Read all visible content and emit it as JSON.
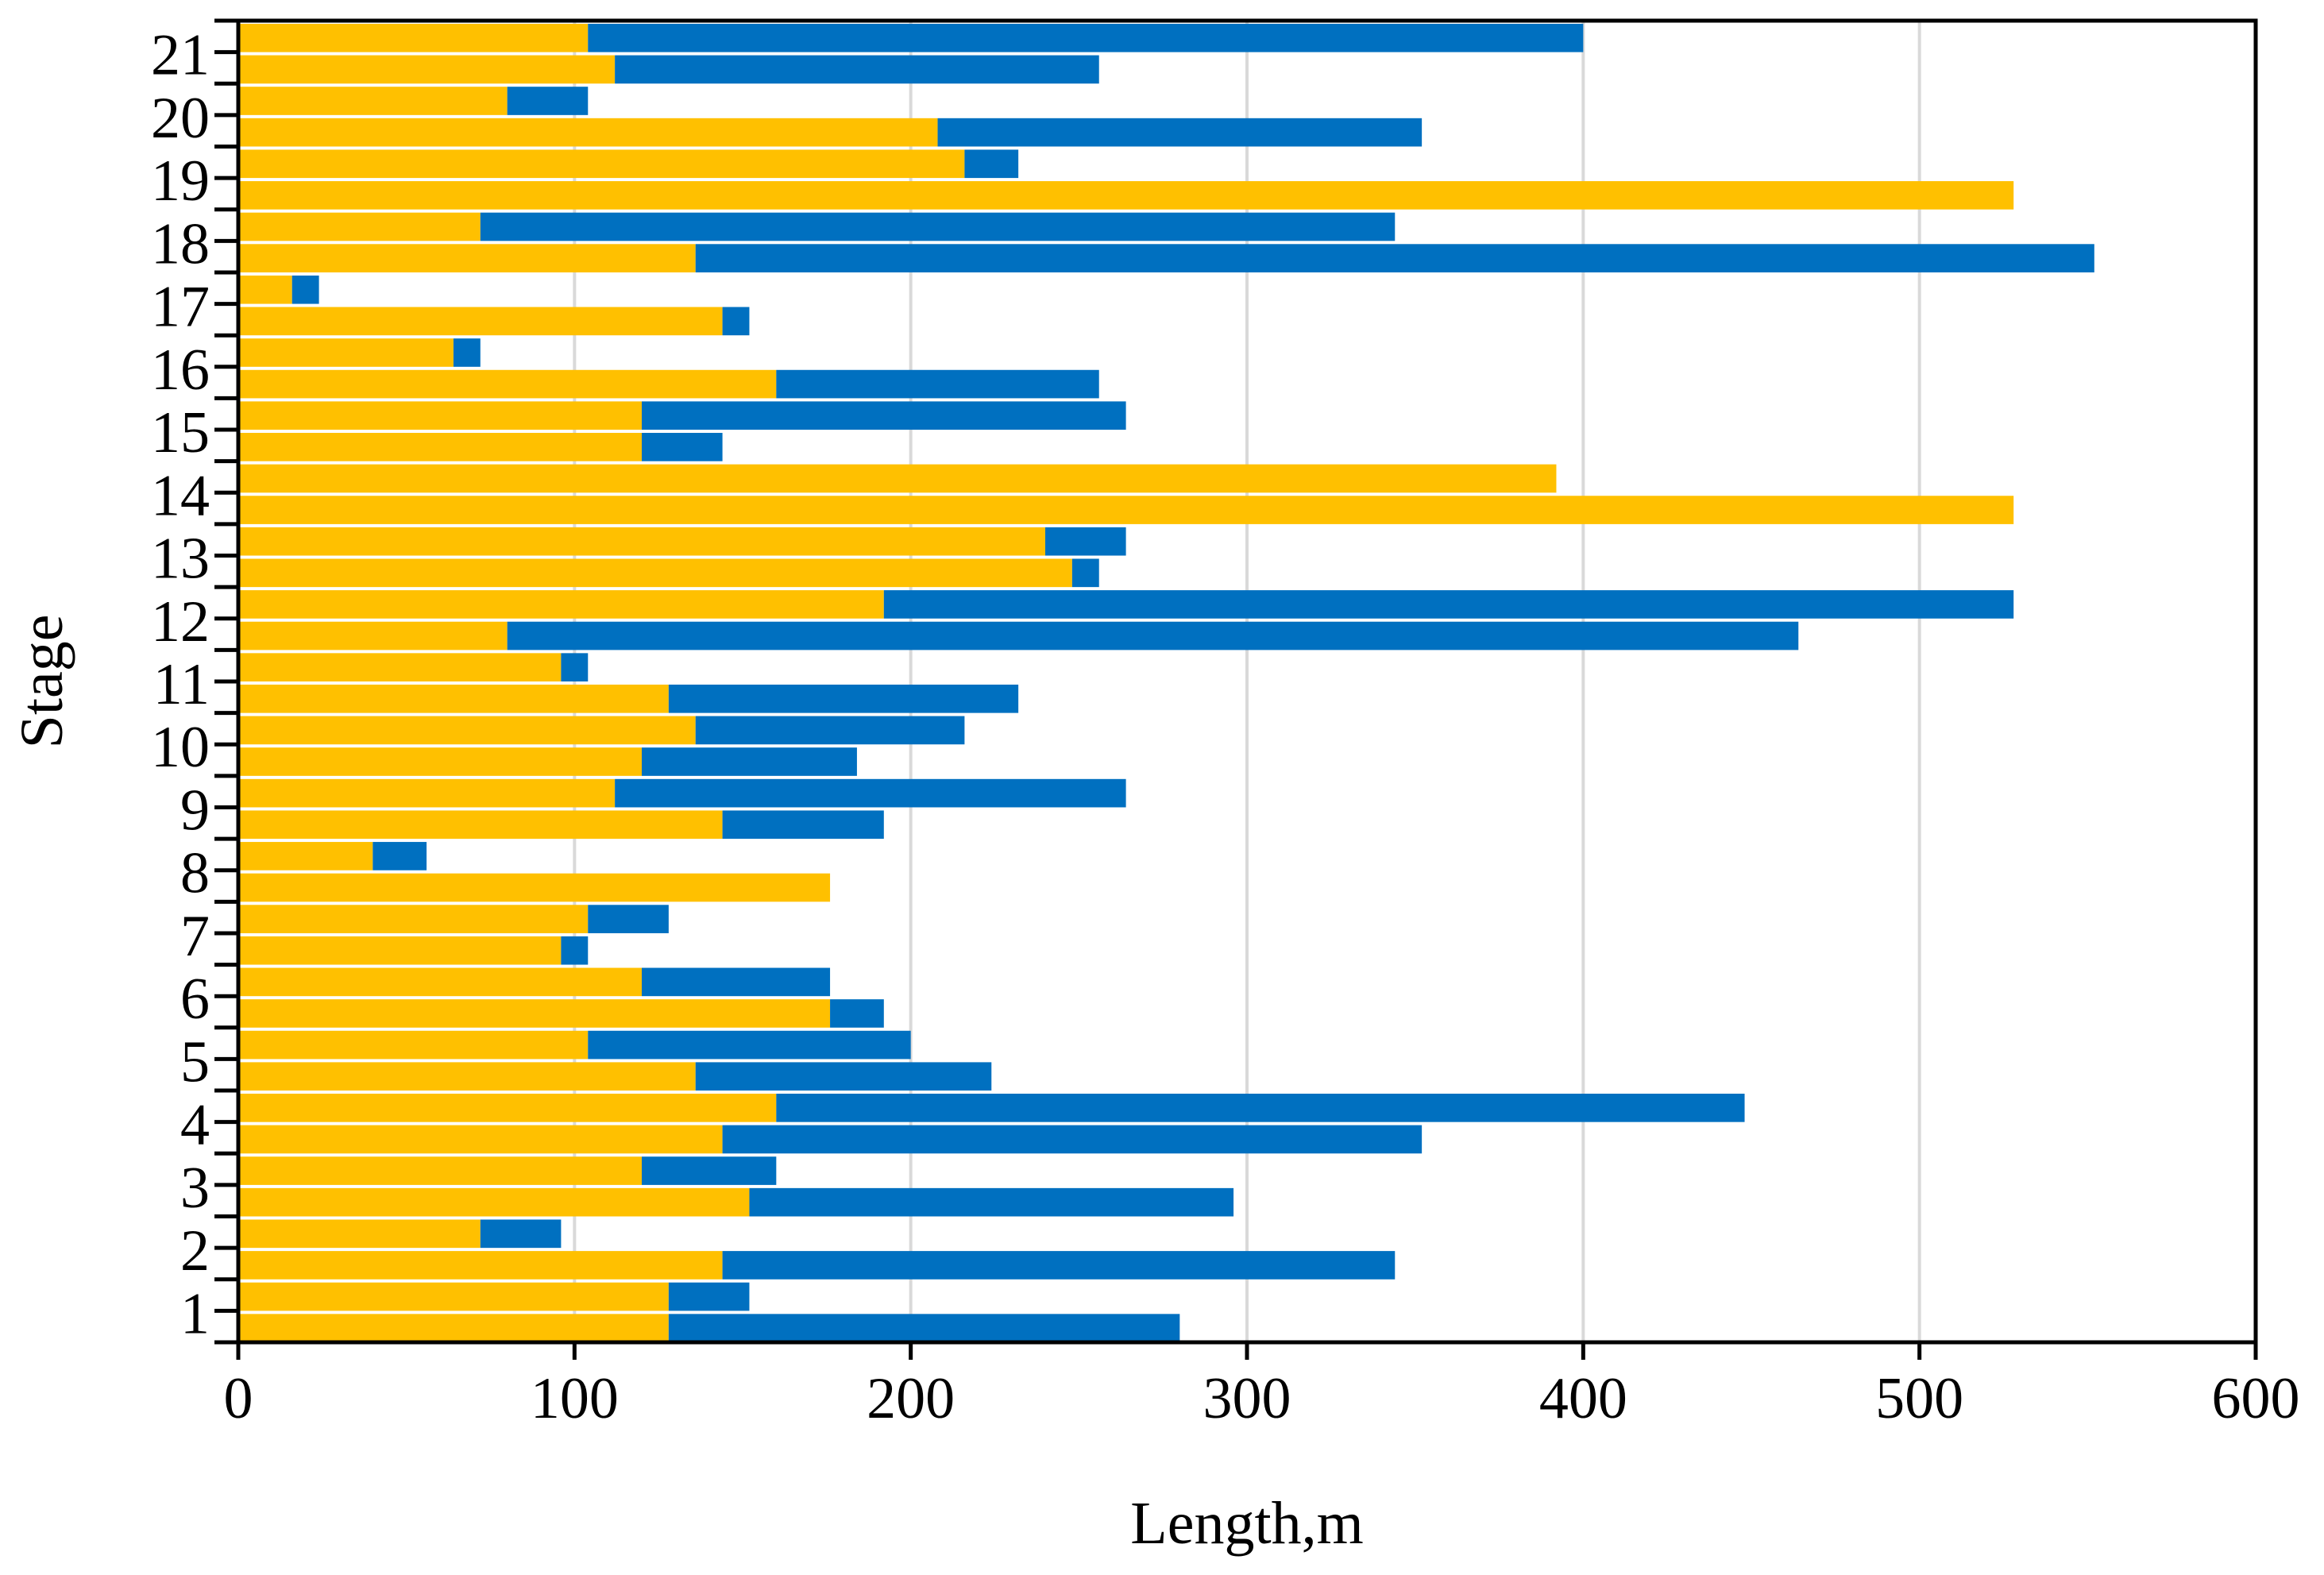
{
  "chart_data": {
    "type": "bar",
    "orientation": "horizontal",
    "stacked": true,
    "title": "",
    "xlabel": "Length,m",
    "ylabel": "Stage",
    "xlim": [
      0,
      600
    ],
    "xticks": [
      0,
      100,
      200,
      300,
      400,
      500,
      600
    ],
    "stage_labels": [
      "1",
      "2",
      "3",
      "4",
      "5",
      "6",
      "7",
      "8",
      "9",
      "10",
      "11",
      "12",
      "13",
      "14",
      "15",
      "16",
      "17",
      "18",
      "19",
      "20",
      "21"
    ],
    "bar_count": 42,
    "bars_order": "bottom-to-top",
    "grid": "vertical",
    "legend": "none",
    "colors": {
      "series_a": "#FFC000",
      "series_b": "#0070C0",
      "grid": "#d9d9d9",
      "axis": "#000000"
    },
    "series": [
      {
        "name": "series_a",
        "color": "#FFC000",
        "values": [
          128,
          128,
          144,
          72,
          152,
          120,
          144,
          160,
          136,
          104,
          176,
          120,
          96,
          104,
          176,
          40,
          144,
          112,
          120,
          136,
          128,
          96,
          80,
          192,
          248,
          240,
          528,
          392,
          120,
          120,
          160,
          64,
          144,
          16,
          136,
          72,
          528,
          216,
          208,
          80,
          112,
          104
        ]
      },
      {
        "name": "series_b",
        "color": "#0070C0",
        "values": [
          152,
          24,
          200,
          24,
          144,
          40,
          208,
          288,
          88,
          96,
          16,
          56,
          8,
          24,
          0,
          16,
          48,
          152,
          64,
          80,
          104,
          8,
          384,
          336,
          8,
          24,
          0,
          0,
          24,
          144,
          96,
          8,
          8,
          8,
          416,
          272,
          0,
          16,
          144,
          24,
          144,
          296
        ]
      }
    ]
  }
}
